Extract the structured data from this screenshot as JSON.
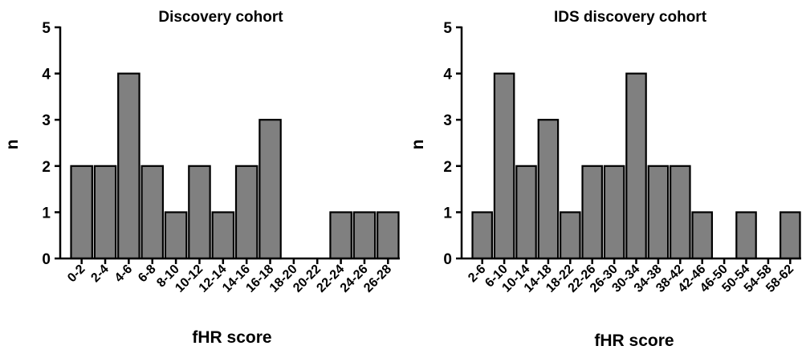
{
  "chart_data": [
    {
      "type": "bar",
      "title": "Discovery cohort",
      "xlabel": "fHR score",
      "ylabel": "n",
      "ylim": [
        0,
        5
      ],
      "yticks": [
        "0",
        "1",
        "2",
        "3",
        "4",
        "5"
      ],
      "categories": [
        "0-2",
        "2-4",
        "4-6",
        "6-8",
        "8-10",
        "10-12",
        "12-14",
        "14-16",
        "16-18",
        "18-20",
        "20-22",
        "22-24",
        "24-26",
        "26-28"
      ],
      "values": [
        2,
        2,
        4,
        2,
        1,
        2,
        1,
        2,
        3,
        0,
        0,
        1,
        1,
        1
      ],
      "bar_color": "#808080",
      "edge_color": "#000000"
    },
    {
      "type": "bar",
      "title": "IDS discovery cohort",
      "xlabel": "fHR score",
      "ylabel": "n",
      "ylim": [
        0,
        5
      ],
      "yticks": [
        "0",
        "1",
        "2",
        "3",
        "4",
        "5"
      ],
      "categories": [
        "2-6",
        "6-10",
        "10-14",
        "14-18",
        "18-22",
        "22-26",
        "26-30",
        "30-34",
        "34-38",
        "38-42",
        "42-46",
        "46-50",
        "50-54",
        "54-58",
        "58-62"
      ],
      "values": [
        1,
        4,
        2,
        3,
        1,
        2,
        2,
        4,
        2,
        2,
        1,
        0,
        1,
        0,
        1
      ],
      "bar_color": "#808080",
      "edge_color": "#000000"
    }
  ]
}
